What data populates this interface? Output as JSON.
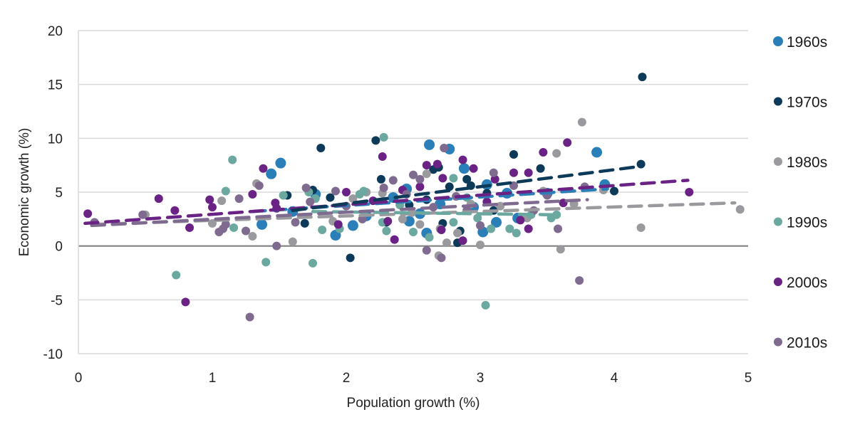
{
  "chart_data": {
    "type": "scatter",
    "title": "",
    "xlabel": "Population growth (%)",
    "ylabel": "Economic growth (%)",
    "xlim": [
      0,
      5
    ],
    "ylim": [
      -10,
      20
    ],
    "x_ticks": [
      "0",
      "1",
      "2",
      "3",
      "4",
      "5"
    ],
    "y_ticks": [
      "20",
      "15",
      "10",
      "5",
      "0",
      "-5",
      "-10"
    ],
    "x_tick_values": [
      0,
      1,
      2,
      3,
      4,
      5
    ],
    "y_tick_values": [
      20,
      15,
      10,
      5,
      0,
      -5,
      -10
    ],
    "grid": "horizontal",
    "legend_position": "right",
    "trendline_style": "dashed linear",
    "series": [
      {
        "name": "1960s",
        "color": "#2a7fb8",
        "points": [
          [
            1.44,
            6.7
          ],
          [
            1.51,
            7.7
          ],
          [
            1.37,
            2.0
          ],
          [
            1.77,
            4.8
          ],
          [
            1.92,
            1.0
          ],
          [
            2.05,
            1.9
          ],
          [
            2.45,
            5.3
          ],
          [
            2.47,
            2.3
          ],
          [
            2.6,
            1.2
          ],
          [
            2.62,
            9.4
          ],
          [
            2.77,
            9.0
          ],
          [
            2.88,
            7.2
          ],
          [
            3.02,
            1.3
          ],
          [
            3.05,
            5.7
          ],
          [
            3.2,
            4.9
          ],
          [
            3.28,
            2.6
          ],
          [
            3.5,
            4.9
          ],
          [
            3.87,
            8.7
          ],
          [
            3.93,
            5.7
          ],
          [
            2.35,
            4.5
          ],
          [
            2.55,
            3.0
          ],
          [
            2.95,
            3.6
          ],
          [
            1.6,
            3.2
          ],
          [
            2.15,
            2.8
          ],
          [
            2.7,
            3.9
          ],
          [
            3.12,
            2.2
          ]
        ],
        "trend": [
          [
            1.3,
            3.2
          ],
          [
            3.95,
            5.3
          ]
        ]
      },
      {
        "name": "1970s",
        "color": "#0d3a58",
        "points": [
          [
            4.21,
            15.7
          ],
          [
            4.2,
            7.6
          ],
          [
            4.0,
            5.1
          ],
          [
            3.45,
            7.2
          ],
          [
            3.25,
            8.5
          ],
          [
            2.22,
            9.8
          ],
          [
            1.81,
            9.1
          ],
          [
            2.03,
            -1.1
          ],
          [
            1.56,
            4.7
          ],
          [
            1.75,
            5.2
          ],
          [
            2.26,
            6.2
          ],
          [
            2.3,
            2.2
          ],
          [
            2.69,
            7.3
          ],
          [
            2.77,
            5.5
          ],
          [
            2.85,
            1.4
          ],
          [
            2.9,
            6.2
          ],
          [
            2.93,
            5.6
          ],
          [
            3.05,
            4.9
          ],
          [
            2.65,
            7.1
          ],
          [
            2.47,
            3.8
          ],
          [
            1.88,
            4.5
          ],
          [
            1.69,
            2.1
          ],
          [
            2.72,
            2.1
          ],
          [
            2.83,
            0.3
          ],
          [
            3.1,
            3.3
          ],
          [
            2.6,
            4.3
          ]
        ],
        "trend": [
          [
            1.6,
            3.3
          ],
          [
            4.2,
            7.4
          ]
        ]
      },
      {
        "name": "1980s",
        "color": "#9a9a9e",
        "points": [
          [
            3.76,
            11.5
          ],
          [
            3.57,
            8.6
          ],
          [
            4.2,
            1.7
          ],
          [
            4.94,
            3.4
          ],
          [
            3.6,
            -0.3
          ],
          [
            3.0,
            0.1
          ],
          [
            2.75,
            0.3
          ],
          [
            2.83,
            1.2
          ],
          [
            1.33,
            5.8
          ],
          [
            1.07,
            4.2
          ],
          [
            1.0,
            2.1
          ],
          [
            1.6,
            0.4
          ],
          [
            1.3,
            0.9
          ],
          [
            2.27,
            4.9
          ],
          [
            2.6,
            6.7
          ],
          [
            2.69,
            -0.9
          ],
          [
            2.49,
            3.1
          ],
          [
            2.15,
            5.0
          ],
          [
            3.35,
            2.6
          ],
          [
            3.7,
            3.9
          ],
          [
            3.92,
            5.2
          ],
          [
            2.93,
            3.9
          ],
          [
            2.42,
            2.5
          ],
          [
            1.9,
            2.3
          ],
          [
            2.05,
            4.4
          ],
          [
            3.15,
            3.7
          ],
          [
            2.55,
            2.0
          ],
          [
            3.47,
            5.1
          ],
          [
            0.5,
            2.9
          ],
          [
            2.7,
            1.6
          ]
        ],
        "trend": [
          [
            0.1,
            2.0
          ],
          [
            4.9,
            4.0
          ]
        ]
      },
      {
        "name": "1990s",
        "color": "#6aa8a0",
        "points": [
          [
            1.15,
            8.0
          ],
          [
            1.1,
            5.1
          ],
          [
            0.73,
            -2.7
          ],
          [
            1.4,
            -1.5
          ],
          [
            1.75,
            -1.6
          ],
          [
            3.04,
            -5.5
          ],
          [
            2.28,
            10.1
          ],
          [
            2.8,
            6.3
          ],
          [
            1.53,
            4.7
          ],
          [
            1.77,
            4.4
          ],
          [
            2.13,
            5.1
          ],
          [
            2.1,
            4.8
          ],
          [
            2.3,
            1.4
          ],
          [
            2.5,
            1.3
          ],
          [
            2.27,
            2.2
          ],
          [
            1.95,
            1.6
          ],
          [
            1.82,
            1.5
          ],
          [
            1.72,
            5.0
          ],
          [
            3.22,
            1.6
          ],
          [
            3.27,
            1.2
          ],
          [
            3.53,
            2.6
          ],
          [
            3.57,
            2.9
          ],
          [
            2.8,
            2.2
          ],
          [
            2.98,
            2.6
          ],
          [
            3.08,
            1.6
          ],
          [
            2.62,
            0.8
          ],
          [
            1.16,
            1.7
          ],
          [
            2.4,
            3.8
          ],
          [
            2.9,
            4.5
          ],
          [
            3.38,
            2.9
          ]
        ],
        "trend": [
          [
            1.75,
            3.2
          ],
          [
            3.55,
            2.9
          ]
        ]
      },
      {
        "name": "2000s",
        "color": "#6a2384",
        "points": [
          [
            0.07,
            3.0
          ],
          [
            0.6,
            4.4
          ],
          [
            0.8,
            -5.2
          ],
          [
            0.72,
            3.3
          ],
          [
            0.83,
            1.7
          ],
          [
            0.98,
            4.3
          ],
          [
            1.0,
            3.6
          ],
          [
            1.3,
            4.8
          ],
          [
            1.38,
            7.2
          ],
          [
            1.47,
            4.0
          ],
          [
            1.48,
            3.5
          ],
          [
            2.27,
            8.3
          ],
          [
            2.42,
            5.2
          ],
          [
            2.6,
            7.5
          ],
          [
            2.68,
            7.6
          ],
          [
            2.72,
            6.3
          ],
          [
            2.87,
            8.0
          ],
          [
            2.95,
            7.2
          ],
          [
            3.25,
            6.8
          ],
          [
            3.36,
            6.8
          ],
          [
            3.47,
            8.7
          ],
          [
            3.65,
            9.6
          ],
          [
            4.56,
            5.0
          ],
          [
            2.0,
            5.0
          ],
          [
            2.31,
            2.3
          ],
          [
            2.36,
            0.6
          ],
          [
            2.71,
            1.5
          ],
          [
            2.87,
            0.5
          ],
          [
            3.05,
            4.1
          ],
          [
            3.11,
            6.2
          ],
          [
            3.3,
            2.4
          ],
          [
            3.36,
            1.6
          ],
          [
            3.62,
            4.0
          ],
          [
            1.94,
            2.0
          ],
          [
            2.2,
            4.2
          ],
          [
            2.55,
            5.5
          ]
        ],
        "trend": [
          [
            0.05,
            2.1
          ],
          [
            4.55,
            6.1
          ]
        ]
      },
      {
        "name": "2010s",
        "color": "#7f6a90",
        "points": [
          [
            0.12,
            2.2
          ],
          [
            0.48,
            2.9
          ],
          [
            1.05,
            1.3
          ],
          [
            1.08,
            1.6
          ],
          [
            1.2,
            4.4
          ],
          [
            1.25,
            1.4
          ],
          [
            1.28,
            -6.6
          ],
          [
            1.35,
            5.6
          ],
          [
            1.48,
            0.0
          ],
          [
            1.7,
            5.4
          ],
          [
            1.73,
            4.1
          ],
          [
            1.92,
            5.1
          ],
          [
            2.0,
            3.7
          ],
          [
            2.28,
            5.4
          ],
          [
            2.45,
            4.8
          ],
          [
            2.55,
            6.2
          ],
          [
            2.6,
            -0.4
          ],
          [
            2.71,
            -1.1
          ],
          [
            2.73,
            9.1
          ],
          [
            2.9,
            3.3
          ],
          [
            3.1,
            6.8
          ],
          [
            3.25,
            5.6
          ],
          [
            3.5,
            4.7
          ],
          [
            3.58,
            1.6
          ],
          [
            3.74,
            -3.2
          ],
          [
            3.78,
            5.5
          ],
          [
            2.35,
            6.1
          ],
          [
            1.1,
            2.0
          ],
          [
            2.12,
            2.5
          ],
          [
            2.82,
            4.6
          ],
          [
            3.0,
            1.9
          ],
          [
            2.65,
            3.6
          ],
          [
            3.4,
            3.3
          ],
          [
            1.62,
            2.2
          ],
          [
            2.5,
            6.6
          ]
        ],
        "trend": [
          [
            0.1,
            1.9
          ],
          [
            3.8,
            4.3
          ]
        ]
      }
    ]
  },
  "legend": {
    "items": [
      {
        "label": "1960s",
        "color": "#2a7fb8"
      },
      {
        "label": "1970s",
        "color": "#0d3a58"
      },
      {
        "label": "1980s",
        "color": "#9a9a9e"
      },
      {
        "label": "1990s",
        "color": "#6aa8a0"
      },
      {
        "label": "2000s",
        "color": "#6a2384"
      },
      {
        "label": "2010s",
        "color": "#7f6a90"
      }
    ]
  }
}
